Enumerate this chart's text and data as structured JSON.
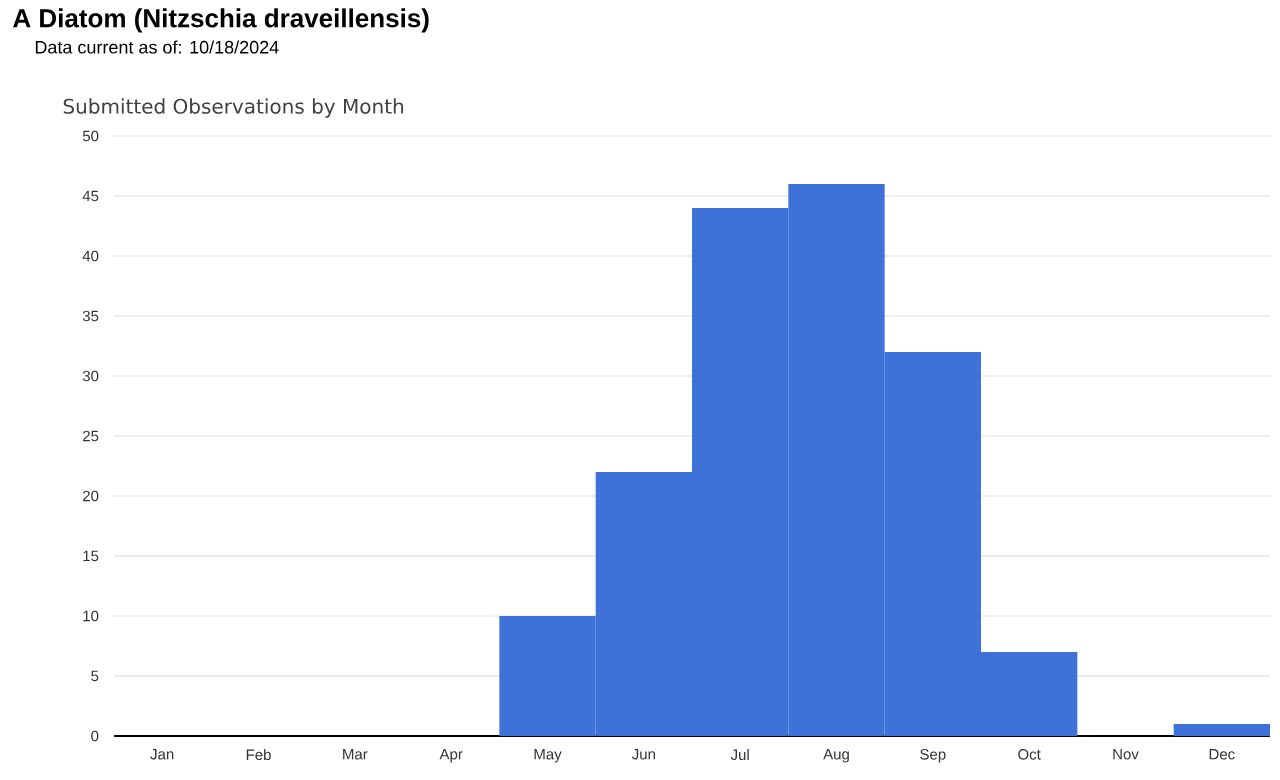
{
  "chart_data": {
    "type": "bar",
    "title": "A Diatom (Nitzschia draveillensis)",
    "subtitle": "Data current as of: 10/18/2024",
    "annotations": [
      "Submitted Observations by Month"
    ],
    "categories": [
      "Jan",
      "Feb",
      "Mar",
      "Apr",
      "May",
      "Jun",
      "Jul",
      "Aug",
      "Sep",
      "Oct",
      "Nov",
      "Dec"
    ],
    "values": [
      0,
      0,
      0,
      0,
      10,
      22,
      44,
      46,
      32,
      7,
      0,
      1
    ],
    "color": "#3f72d8",
    "ylim": [
      0,
      50
    ],
    "yticks": [
      0,
      5,
      10,
      15,
      20,
      25,
      30,
      35,
      40,
      45,
      50
    ],
    "grid": "y"
  }
}
